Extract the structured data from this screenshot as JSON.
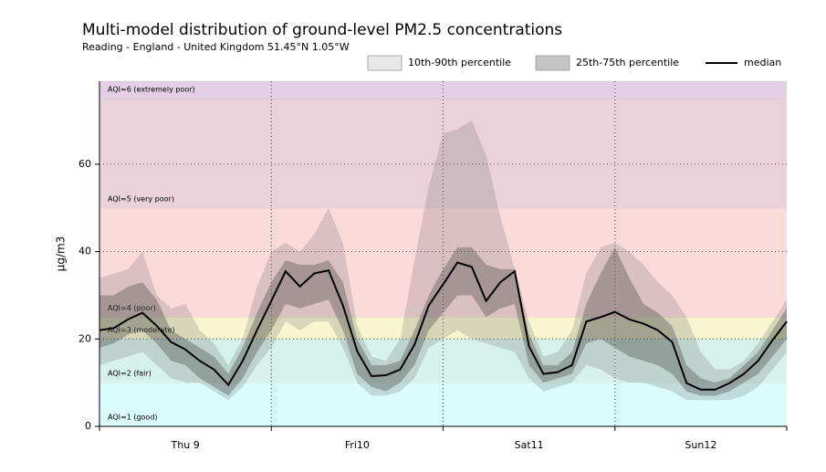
{
  "chart_data": {
    "type": "percentile-band",
    "title": "Multi-model distribution of ground-level PM2.5 concentrations",
    "subtitle": "Reading - England - United Kingdom 51.45°N 1.05°W",
    "ylabel": "µg/m3",
    "xlim": [
      0,
      96
    ],
    "ylim": [
      0,
      79
    ],
    "yticks": [
      0,
      20,
      40,
      60
    ],
    "xticks": [
      {
        "value": 12,
        "label": "Thu 9"
      },
      {
        "value": 36,
        "label": "Fri10"
      },
      {
        "value": 60,
        "label": "Sat11"
      },
      {
        "value": 84,
        "label": "Sun12"
      }
    ],
    "xminor": [
      0,
      24,
      48,
      72,
      96
    ],
    "xgrid": [
      24,
      48,
      72
    ],
    "grid": true,
    "aqi_bands": [
      {
        "label": "AQI=1 (good)",
        "from": 0,
        "to": 10,
        "color": "#dafcfb"
      },
      {
        "label": "AQI=2 (fair)",
        "from": 10,
        "to": 20,
        "color": "#d7f2ea"
      },
      {
        "label": "AQI=3 (moderate)",
        "from": 20,
        "to": 25,
        "color": "#f8f6d0"
      },
      {
        "label": "AQI=4 (poor)",
        "from": 25,
        "to": 50,
        "color": "#fbdada"
      },
      {
        "label": "AQI=5 (very poor)",
        "from": 50,
        "to": 75,
        "color": "#ebd1da"
      },
      {
        "label": "AQI=6 (extremely poor)",
        "from": 75,
        "to": 79,
        "color": "#e3d0e5"
      }
    ],
    "x": [
      0,
      2,
      4,
      6,
      8,
      10,
      12,
      14,
      16,
      18,
      20,
      22,
      24,
      26,
      28,
      30,
      32,
      34,
      36,
      38,
      40,
      42,
      44,
      46,
      48,
      50,
      52,
      54,
      56,
      58,
      60,
      62,
      64,
      66,
      68,
      70,
      72,
      74,
      76,
      78,
      80,
      82,
      84,
      86,
      88,
      90,
      92,
      94,
      96
    ],
    "bands": [
      {
        "name": "10th-90th percentile",
        "color": "rgba(90,90,90,0.2)",
        "lower": [
          14,
          15,
          16,
          17,
          14,
          11,
          10,
          10,
          8,
          6,
          9,
          14,
          18,
          24,
          22,
          24,
          24,
          18,
          10,
          7,
          7,
          8,
          11,
          18,
          20,
          22,
          20,
          19,
          18,
          17,
          11,
          8,
          9,
          10,
          14,
          13,
          11,
          10,
          10,
          9,
          8,
          6,
          6,
          6,
          6,
          7,
          9,
          13,
          17
        ],
        "upper": [
          34,
          35,
          36,
          40,
          30,
          27,
          28,
          22,
          19,
          14,
          20,
          32,
          40,
          42,
          40,
          44,
          50,
          42,
          23,
          16,
          15,
          20,
          38,
          55,
          67,
          68,
          70,
          62,
          48,
          36,
          24,
          16,
          17,
          22,
          35,
          41,
          42,
          40,
          37,
          33,
          30,
          25,
          17,
          13,
          13,
          15,
          19,
          24,
          29
        ]
      },
      {
        "name": "25th-75th percentile",
        "color": "rgba(70,70,70,0.35)",
        "lower": [
          18,
          19,
          21,
          22,
          19,
          15,
          14,
          11,
          9,
          7,
          11,
          17,
          22,
          28,
          27,
          28,
          29,
          22,
          12,
          9,
          8,
          10,
          14,
          22,
          26,
          30,
          30,
          25,
          27,
          28,
          14,
          10,
          11,
          12,
          19,
          20,
          18,
          16,
          15,
          14,
          12,
          8,
          7,
          7,
          8,
          10,
          12,
          16,
          20
        ],
        "upper": [
          30,
          30,
          32,
          33,
          29,
          22,
          20,
          18,
          16,
          12,
          18,
          26,
          33,
          38,
          37,
          37,
          38,
          33,
          20,
          14,
          14,
          15,
          22,
          30,
          36,
          41,
          41,
          37,
          36,
          36,
          21,
          14,
          14,
          17,
          28,
          35,
          41,
          34,
          28,
          26,
          23,
          14,
          11,
          10,
          11,
          14,
          17,
          22,
          27
        ]
      }
    ],
    "series": [
      {
        "name": "median",
        "color": "#000000",
        "values": [
          22,
          22.5,
          24.5,
          26,
          23,
          19.3,
          17.6,
          15,
          13,
          9.5,
          15,
          22,
          28.7,
          35.5,
          32,
          35,
          35.7,
          27.7,
          17.2,
          11.5,
          11.7,
          13,
          18.7,
          27.7,
          32.5,
          37.5,
          36.5,
          28.7,
          33,
          35.5,
          18.3,
          12,
          12.4,
          14,
          24,
          25,
          26.2,
          24.5,
          23.5,
          22,
          19.3,
          9.9,
          8.4,
          8.4,
          9.9,
          12,
          15,
          19.7,
          24
        ]
      }
    ]
  }
}
